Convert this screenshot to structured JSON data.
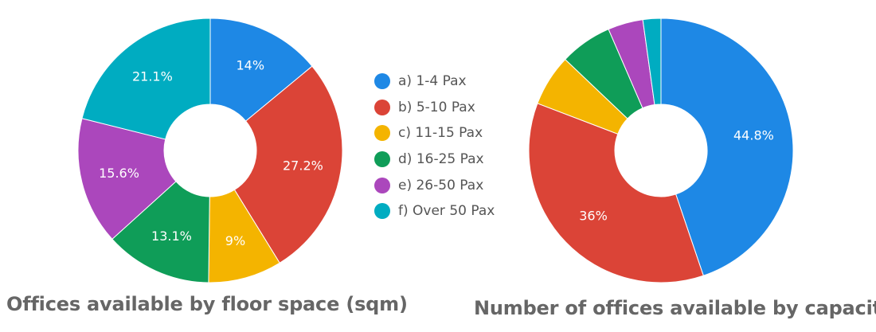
{
  "chart_data": [
    {
      "type": "pie",
      "title": "Offices available by floor space (sqm)",
      "categories": [
        "a) 1-4 Pax",
        "b) 5-10 Pax",
        "c) 11-15 Pax",
        "d) 16-25 Pax",
        "e) 26-50 Pax",
        "f) Over 50 Pax"
      ],
      "values": [
        14,
        27.2,
        9,
        13.1,
        15.6,
        21.1
      ],
      "data_labels": [
        "14%",
        "27.2%",
        "9%",
        "13.1%",
        "15.6%",
        "21.1%"
      ],
      "donut": true,
      "legend_position": "right"
    },
    {
      "type": "pie",
      "title": "Number of offices available by capacity",
      "categories": [
        "a) 1-4 Pax",
        "b) 5-10 Pax",
        "c) 11-15 Pax",
        "d) 16-25 Pax",
        "e) 26-50 Pax",
        "f) Over 50 Pax"
      ],
      "values": [
        44.8,
        36,
        6.3,
        6.4,
        4.3,
        2.2
      ],
      "data_labels": [
        "44.8%",
        "36%",
        "",
        "",
        "",
        ""
      ],
      "donut": true,
      "legend_position": "left"
    }
  ],
  "legend": {
    "items": [
      {
        "label": "a) 1-4 Pax",
        "color": "#1E88E5"
      },
      {
        "label": "b) 5-10 Pax",
        "color": "#DB4437"
      },
      {
        "label": "c) 11-15 Pax",
        "color": "#F4B400"
      },
      {
        "label": "d) 16-25 Pax",
        "color": "#0F9D58"
      },
      {
        "label": "e) 26-50 Pax",
        "color": "#AB47BC"
      },
      {
        "label": "f) Over 50 Pax",
        "color": "#00ACC1"
      }
    ]
  },
  "label_colors": {
    "c) 11-15 Pax": "#7a5a00"
  }
}
